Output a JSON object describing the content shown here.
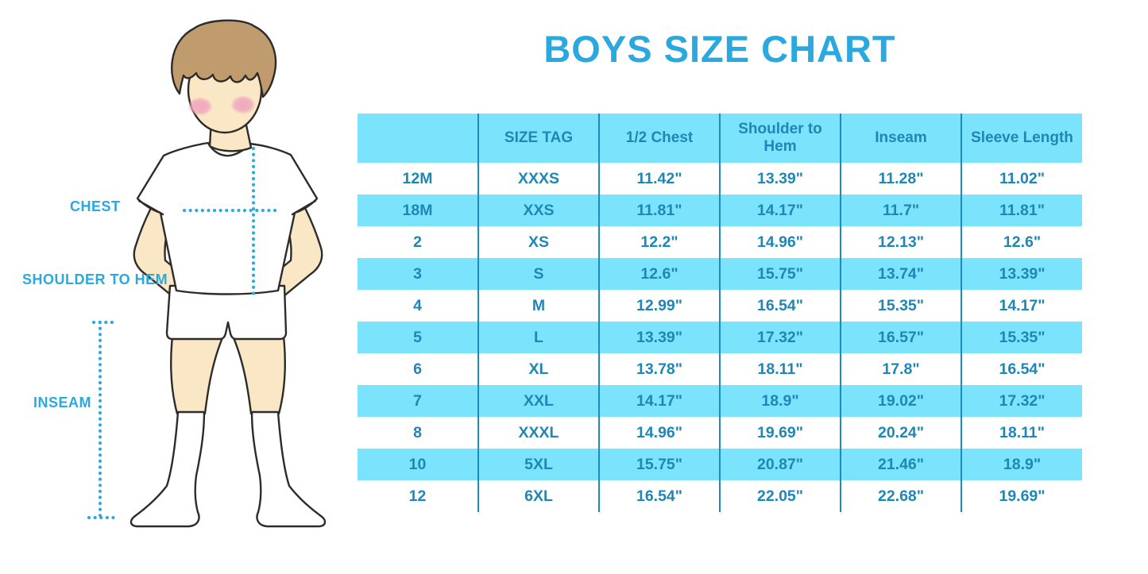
{
  "title": "BOYS SIZE CHART",
  "figure": {
    "description": "illustration of a boy wearing a white t-shirt, white shorts and knee socks with dotted measurement guides",
    "labels": {
      "chest": "CHEST",
      "shoulder_to_hem": "SHOULDER TO HEM",
      "inseam": "INSEAM"
    }
  },
  "colors": {
    "accent_blue": "#29A9E0",
    "table_text": "#1E87B5",
    "stripe_cyan": "#7BE3FB",
    "divider_blue": "#1C8CBE",
    "skin": "#FAE7C5",
    "hair": "#BF9B6E",
    "blush": "#F0A9BC",
    "outline": "#2E2C2A"
  },
  "chart_data": {
    "type": "table",
    "title": "BOYS SIZE CHART",
    "columns": [
      "",
      "SIZE TAG",
      "1/2 Chest",
      "Shoulder to Hem",
      "Inseam",
      "Sleeve Length"
    ],
    "rows": [
      [
        "12M",
        "XXXS",
        "11.42\"",
        "13.39\"",
        "11.28\"",
        "11.02\""
      ],
      [
        "18M",
        "XXS",
        "11.81\"",
        "14.17\"",
        "11.7\"",
        "11.81\""
      ],
      [
        "2",
        "XS",
        "12.2\"",
        "14.96\"",
        "12.13\"",
        "12.6\""
      ],
      [
        "3",
        "S",
        "12.6\"",
        "15.75\"",
        "13.74\"",
        "13.39\""
      ],
      [
        "4",
        "M",
        "12.99\"",
        "16.54\"",
        "15.35\"",
        "14.17\""
      ],
      [
        "5",
        "L",
        "13.39\"",
        "17.32\"",
        "16.57\"",
        "15.35\""
      ],
      [
        "6",
        "XL",
        "13.78\"",
        "18.11\"",
        "17.8\"",
        "16.54\""
      ],
      [
        "7",
        "XXL",
        "14.17\"",
        "18.9\"",
        "19.02\"",
        "17.32\""
      ],
      [
        "8",
        "XXXL",
        "14.96\"",
        "19.69\"",
        "20.24\"",
        "18.11\""
      ],
      [
        "10",
        "5XL",
        "15.75\"",
        "20.87\"",
        "21.46\"",
        "18.9\""
      ],
      [
        "12",
        "6XL",
        "16.54\"",
        "22.05\"",
        "22.68\"",
        "19.69\""
      ]
    ],
    "layout": {
      "header_background": "#7BE3FB",
      "row_striping": "body rows alternate white / cyan starting with white",
      "column_dividers": "vertical blue lines between all columns, no horizontal borders",
      "units": "inches"
    }
  }
}
